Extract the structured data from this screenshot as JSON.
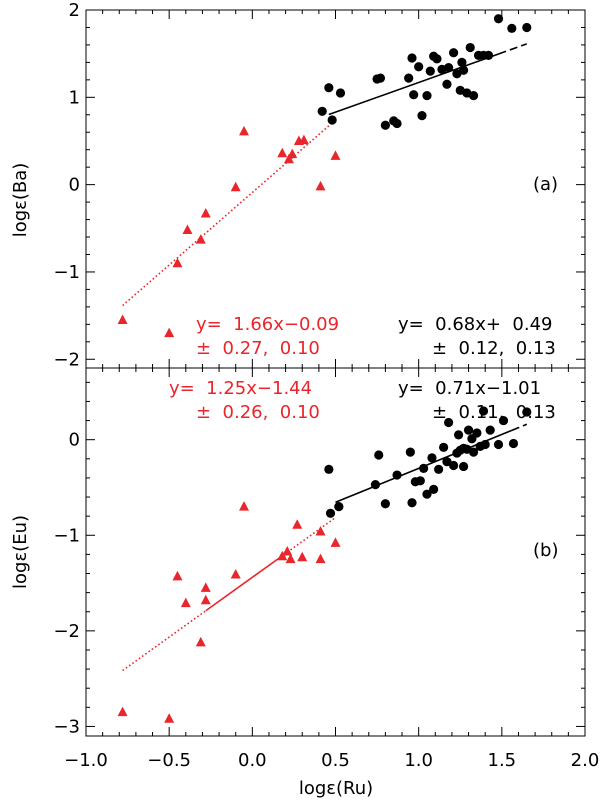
{
  "chart_data": {
    "type": "scatter",
    "shared_xlabel": "logε(Ru)",
    "xlim": [
      -1.0,
      2.0
    ],
    "x_ticks": [
      {
        "value": -1.0,
        "label": "−1.0"
      },
      {
        "value": -0.5,
        "label": "−0.5"
      },
      {
        "value": 0.0,
        "label": "0.0"
      },
      {
        "value": 0.5,
        "label": "0.5"
      },
      {
        "value": 1.0,
        "label": "1.0"
      },
      {
        "value": 1.5,
        "label": "1.5"
      },
      {
        "value": 2.0,
        "label": "2.0"
      }
    ],
    "colors": {
      "triangles": "#e8262b",
      "circles": "#000000",
      "axes": "#000000"
    },
    "panels": [
      {
        "id": "a",
        "panel_label": "(a)",
        "ylabel": "logε(Ba)",
        "ylim": [
          -2.1,
          2.0
        ],
        "y_ticks": [
          {
            "value": -2,
            "label": "−2"
          },
          {
            "value": -1,
            "label": "−1"
          },
          {
            "value": 0,
            "label": "0"
          },
          {
            "value": 1,
            "label": "1"
          },
          {
            "value": 2,
            "label": "2"
          }
        ],
        "triangles": [
          {
            "x": -0.78,
            "y": -1.55
          },
          {
            "x": -0.5,
            "y": -1.7
          },
          {
            "x": -0.45,
            "y": -0.9
          },
          {
            "x": -0.39,
            "y": -0.52
          },
          {
            "x": -0.31,
            "y": -0.63
          },
          {
            "x": -0.28,
            "y": -0.33
          },
          {
            "x": -0.1,
            "y": -0.03
          },
          {
            "x": -0.05,
            "y": 0.61
          },
          {
            "x": 0.18,
            "y": 0.36
          },
          {
            "x": 0.22,
            "y": 0.29
          },
          {
            "x": 0.24,
            "y": 0.35
          },
          {
            "x": 0.28,
            "y": 0.5
          },
          {
            "x": 0.31,
            "y": 0.51
          },
          {
            "x": 0.41,
            "y": -0.02
          },
          {
            "x": 0.5,
            "y": 0.33
          }
        ],
        "circles": [
          {
            "x": 0.42,
            "y": 0.84
          },
          {
            "x": 0.46,
            "y": 1.11
          },
          {
            "x": 0.48,
            "y": 0.74
          },
          {
            "x": 0.53,
            "y": 1.05
          },
          {
            "x": 0.75,
            "y": 1.21
          },
          {
            "x": 0.77,
            "y": 1.22
          },
          {
            "x": 0.8,
            "y": 0.68
          },
          {
            "x": 0.85,
            "y": 0.73
          },
          {
            "x": 0.87,
            "y": 0.7
          },
          {
            "x": 0.94,
            "y": 1.22
          },
          {
            "x": 0.96,
            "y": 1.45
          },
          {
            "x": 0.97,
            "y": 1.03
          },
          {
            "x": 1.0,
            "y": 1.35
          },
          {
            "x": 1.02,
            "y": 0.79
          },
          {
            "x": 1.05,
            "y": 1.02
          },
          {
            "x": 1.07,
            "y": 1.3
          },
          {
            "x": 1.09,
            "y": 1.47
          },
          {
            "x": 1.11,
            "y": 1.44
          },
          {
            "x": 1.14,
            "y": 1.32
          },
          {
            "x": 1.17,
            "y": 1.15
          },
          {
            "x": 1.18,
            "y": 1.34
          },
          {
            "x": 1.21,
            "y": 1.51
          },
          {
            "x": 1.23,
            "y": 1.27
          },
          {
            "x": 1.25,
            "y": 1.08
          },
          {
            "x": 1.26,
            "y": 1.4
          },
          {
            "x": 1.27,
            "y": 1.31
          },
          {
            "x": 1.29,
            "y": 1.05
          },
          {
            "x": 1.31,
            "y": 1.57
          },
          {
            "x": 1.33,
            "y": 1.02
          },
          {
            "x": 1.36,
            "y": 1.48
          },
          {
            "x": 1.39,
            "y": 1.48
          },
          {
            "x": 1.42,
            "y": 1.48
          },
          {
            "x": 1.48,
            "y": 1.9
          },
          {
            "x": 1.56,
            "y": 1.79
          },
          {
            "x": 1.65,
            "y": 1.8
          }
        ],
        "fit_red": {
          "equation": "y=  1.66x−0.09",
          "errors": "±  0.27,  0.10",
          "x_dotted": [
            -0.78,
            0.5
          ]
        },
        "fit_black": {
          "equation": "y=  0.68x+  0.49",
          "errors": "±  0.12,  0.13",
          "x_solid": [
            0.46,
            1.48
          ],
          "x_dashed": [
            1.48,
            1.65
          ]
        }
      },
      {
        "id": "b",
        "panel_label": "(b)",
        "ylabel": "logε(Eu)",
        "ylim": [
          -3.1,
          0.75
        ],
        "y_ticks": [
          {
            "value": -3,
            "label": "−3"
          },
          {
            "value": -2,
            "label": "−2"
          },
          {
            "value": -1,
            "label": "−1"
          },
          {
            "value": 0,
            "label": "0"
          }
        ],
        "triangles": [
          {
            "x": -0.78,
            "y": -2.85
          },
          {
            "x": -0.5,
            "y": -2.92
          },
          {
            "x": -0.45,
            "y": -1.43
          },
          {
            "x": -0.4,
            "y": -1.71
          },
          {
            "x": -0.31,
            "y": -2.12
          },
          {
            "x": -0.28,
            "y": -1.55
          },
          {
            "x": -0.28,
            "y": -1.68
          },
          {
            "x": -0.1,
            "y": -1.41
          },
          {
            "x": -0.05,
            "y": -0.7
          },
          {
            "x": 0.18,
            "y": -1.22
          },
          {
            "x": 0.21,
            "y": -1.17
          },
          {
            "x": 0.23,
            "y": -1.25
          },
          {
            "x": 0.27,
            "y": -0.89
          },
          {
            "x": 0.3,
            "y": -1.23
          },
          {
            "x": 0.41,
            "y": -0.96
          },
          {
            "x": 0.41,
            "y": -1.25
          },
          {
            "x": 0.5,
            "y": -1.08
          }
        ],
        "circles": [
          {
            "x": 0.46,
            "y": -0.31
          },
          {
            "x": 0.47,
            "y": -0.77
          },
          {
            "x": 0.52,
            "y": -0.7
          },
          {
            "x": 0.74,
            "y": -0.47
          },
          {
            "x": 0.76,
            "y": -0.16
          },
          {
            "x": 0.8,
            "y": -0.67
          },
          {
            "x": 0.87,
            "y": -0.37
          },
          {
            "x": 0.95,
            "y": -0.13
          },
          {
            "x": 0.96,
            "y": -0.66
          },
          {
            "x": 0.98,
            "y": -0.44
          },
          {
            "x": 1.01,
            "y": -0.43
          },
          {
            "x": 1.03,
            "y": -0.3
          },
          {
            "x": 1.05,
            "y": -0.57
          },
          {
            "x": 1.08,
            "y": -0.19
          },
          {
            "x": 1.09,
            "y": -0.52
          },
          {
            "x": 1.12,
            "y": -0.31
          },
          {
            "x": 1.15,
            "y": -0.08
          },
          {
            "x": 1.17,
            "y": -0.23
          },
          {
            "x": 1.18,
            "y": 0.18
          },
          {
            "x": 1.21,
            "y": -0.27
          },
          {
            "x": 1.23,
            "y": -0.14
          },
          {
            "x": 1.24,
            "y": 0.05
          },
          {
            "x": 1.25,
            "y": -0.11
          },
          {
            "x": 1.27,
            "y": -0.09
          },
          {
            "x": 1.27,
            "y": -0.28
          },
          {
            "x": 1.29,
            "y": -0.1
          },
          {
            "x": 1.3,
            "y": 0.1
          },
          {
            "x": 1.32,
            "y": 0.01
          },
          {
            "x": 1.33,
            "y": -0.13
          },
          {
            "x": 1.35,
            "y": 0.07
          },
          {
            "x": 1.37,
            "y": -0.07
          },
          {
            "x": 1.39,
            "y": 0.3
          },
          {
            "x": 1.4,
            "y": -0.05
          },
          {
            "x": 1.43,
            "y": 0.1
          },
          {
            "x": 1.48,
            "y": -0.05
          },
          {
            "x": 1.51,
            "y": 0.2
          },
          {
            "x": 1.57,
            "y": -0.04
          },
          {
            "x": 1.65,
            "y": 0.29
          }
        ],
        "fit_red": {
          "equation": "y=  1.25x−1.44",
          "errors": "±  0.26,  0.10",
          "x_dotted": [
            -0.78,
            -0.28
          ],
          "x_solid": [
            -0.28,
            0.21
          ],
          "x_dotted_upper": [
            0.21,
            0.5
          ]
        },
        "fit_black": {
          "equation": "y=  0.71x−1.01",
          "errors": "±  0.11,  0.13",
          "x_solid": [
            0.5,
            1.56
          ],
          "x_dashed": [
            1.56,
            1.65
          ]
        }
      }
    ]
  }
}
